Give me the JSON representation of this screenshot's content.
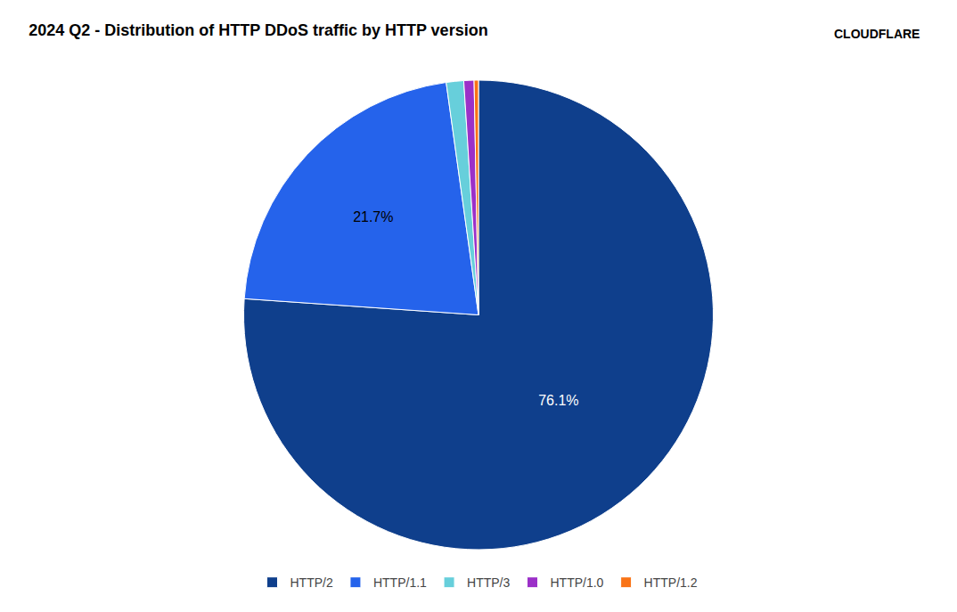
{
  "chart_data": {
    "type": "pie",
    "title": "2024 Q2 - Distribution of HTTP DDoS traffic by HTTP version",
    "categories": [
      "HTTP/2",
      "HTTP/1.1",
      "HTTP/3",
      "HTTP/1.0",
      "HTTP/1.2"
    ],
    "values": [
      76.1,
      21.7,
      1.2,
      0.7,
      0.3
    ],
    "colors": [
      "#0F3F8C",
      "#2563EB",
      "#67CFDB",
      "#9B30C8",
      "#F97316"
    ],
    "data_labels": true,
    "value_labels": [
      "76.1%",
      "21.7%",
      null,
      null,
      null
    ],
    "legend": "bottom",
    "annotations": [
      "CLOUDFLARE"
    ]
  }
}
